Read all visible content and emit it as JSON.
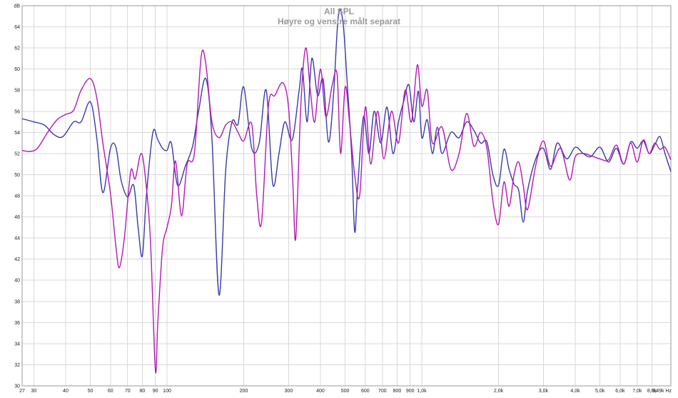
{
  "chart_data": {
    "type": "line",
    "title": "All SPL",
    "subtitle": "Høyre og venstre målt separat",
    "y_unit": "dB",
    "x_unit": "Hz",
    "x_scale": "log",
    "xlim": [
      27,
      9490
    ],
    "ylim": [
      30,
      66
    ],
    "grid": true,
    "colors": {
      "axis": "#999999",
      "grid": "#d8d8d8",
      "background": "#ffffff",
      "title": "#9a9a9a"
    },
    "y_ticks": [
      {
        "value": 30,
        "label": "30"
      },
      {
        "value": 32,
        "label": "32"
      },
      {
        "value": 34,
        "label": "34"
      },
      {
        "value": 36,
        "label": "36"
      },
      {
        "value": 38,
        "label": "38"
      },
      {
        "value": 40,
        "label": "40"
      },
      {
        "value": 42,
        "label": "42"
      },
      {
        "value": 44,
        "label": "44"
      },
      {
        "value": 46,
        "label": "46"
      },
      {
        "value": 48,
        "label": "48"
      },
      {
        "value": 50,
        "label": "50"
      },
      {
        "value": 52,
        "label": "52"
      },
      {
        "value": 54,
        "label": "54"
      },
      {
        "value": 56,
        "label": "56"
      },
      {
        "value": 58,
        "label": "58"
      },
      {
        "value": 60,
        "label": "60"
      },
      {
        "value": 62,
        "label": "62"
      },
      {
        "value": 64,
        "label": "64"
      },
      {
        "value": 66,
        "label": "dB"
      }
    ],
    "x_ticks": [
      {
        "value": 27,
        "label": "27"
      },
      {
        "value": 30,
        "label": "30"
      },
      {
        "value": 40,
        "label": "40"
      },
      {
        "value": 50,
        "label": "50"
      },
      {
        "value": 60,
        "label": "60"
      },
      {
        "value": 70,
        "label": "70"
      },
      {
        "value": 80,
        "label": "80"
      },
      {
        "value": 90,
        "label": "90"
      },
      {
        "value": 100,
        "label": "100"
      },
      {
        "value": 200,
        "label": "200"
      },
      {
        "value": 300,
        "label": "300"
      },
      {
        "value": 400,
        "label": "400"
      },
      {
        "value": 500,
        "label": "500"
      },
      {
        "value": 600,
        "label": "600"
      },
      {
        "value": 700,
        "label": "700"
      },
      {
        "value": 800,
        "label": "800"
      },
      {
        "value": 900,
        "label": "900"
      },
      {
        "value": 1000,
        "label": "1,0k"
      },
      {
        "value": 2000,
        "label": "2,0k"
      },
      {
        "value": 3000,
        "label": "3,0k"
      },
      {
        "value": 4000,
        "label": "4,0k"
      },
      {
        "value": 5000,
        "label": "5,0k"
      },
      {
        "value": 6000,
        "label": "6,0k"
      },
      {
        "value": 7000,
        "label": "7,0k"
      },
      {
        "value": 8000,
        "label": "8,0k"
      },
      {
        "value": 9490,
        "label": "9,49k Hz"
      }
    ],
    "series": [
      {
        "color": "#3a3aa8",
        "points": [
          [
            27,
            55.3
          ],
          [
            30,
            55.0
          ],
          [
            33,
            54.7
          ],
          [
            36,
            53.8
          ],
          [
            39,
            53.6
          ],
          [
            43,
            55.0
          ],
          [
            46,
            55.0
          ],
          [
            50,
            56.9
          ],
          [
            53,
            53.5
          ],
          [
            56,
            48.3
          ],
          [
            60,
            52.5
          ],
          [
            63,
            52.6
          ],
          [
            66,
            49.5
          ],
          [
            70,
            47.9
          ],
          [
            74,
            49.0
          ],
          [
            77,
            45.0
          ],
          [
            80,
            42.3
          ],
          [
            83,
            48.0
          ],
          [
            88,
            54.0
          ],
          [
            92,
            53.3
          ],
          [
            96,
            52.5
          ],
          [
            100,
            52.3
          ],
          [
            104,
            53.0
          ],
          [
            110,
            49.0
          ],
          [
            118,
            50.8
          ],
          [
            126,
            52.7
          ],
          [
            133,
            56.0
          ],
          [
            142,
            59.1
          ],
          [
            150,
            53.5
          ],
          [
            160,
            38.6
          ],
          [
            170,
            50.5
          ],
          [
            180,
            55.0
          ],
          [
            190,
            54.8
          ],
          [
            200,
            58.3
          ],
          [
            215,
            52.5
          ],
          [
            230,
            53.0
          ],
          [
            245,
            58.0
          ],
          [
            260,
            49.1
          ],
          [
            275,
            52.0
          ],
          [
            290,
            55.0
          ],
          [
            310,
            53.3
          ],
          [
            330,
            58.0
          ],
          [
            340,
            60.0
          ],
          [
            355,
            55.0
          ],
          [
            370,
            61.0
          ],
          [
            390,
            57.5
          ],
          [
            410,
            59.0
          ],
          [
            430,
            53.1
          ],
          [
            450,
            57.5
          ],
          [
            470,
            65.0
          ],
          [
            490,
            64.5
          ],
          [
            510,
            58.5
          ],
          [
            530,
            52.0
          ],
          [
            545,
            44.6
          ],
          [
            560,
            48.8
          ],
          [
            590,
            55.5
          ],
          [
            620,
            52.0
          ],
          [
            650,
            56.0
          ],
          [
            690,
            53.0
          ],
          [
            730,
            56.4
          ],
          [
            770,
            52.0
          ],
          [
            810,
            55.0
          ],
          [
            850,
            57.0
          ],
          [
            890,
            58.5
          ],
          [
            930,
            55.0
          ],
          [
            970,
            57.9
          ],
          [
            1000,
            53.5
          ],
          [
            1050,
            55.2
          ],
          [
            1100,
            52.0
          ],
          [
            1150,
            54.5
          ],
          [
            1200,
            52.0
          ],
          [
            1300,
            54.0
          ],
          [
            1400,
            53.5
          ],
          [
            1500,
            55.0
          ],
          [
            1600,
            54.2
          ],
          [
            1700,
            53.0
          ],
          [
            1800,
            53.1
          ],
          [
            1900,
            50.0
          ],
          [
            2000,
            49.0
          ],
          [
            2100,
            52.4
          ],
          [
            2200,
            50.5
          ],
          [
            2300,
            49.1
          ],
          [
            2400,
            48.5
          ],
          [
            2500,
            45.5
          ],
          [
            2600,
            48.5
          ],
          [
            2800,
            51.5
          ],
          [
            3000,
            52.5
          ],
          [
            3200,
            50.5
          ],
          [
            3400,
            53.0
          ],
          [
            3700,
            51.5
          ],
          [
            4000,
            52.6
          ],
          [
            4300,
            52.0
          ],
          [
            4600,
            51.7
          ],
          [
            5000,
            52.6
          ],
          [
            5400,
            51.2
          ],
          [
            5800,
            52.5
          ],
          [
            6200,
            51.0
          ],
          [
            6600,
            53.1
          ],
          [
            7000,
            52.5
          ],
          [
            7400,
            53.2
          ],
          [
            7800,
            52.0
          ],
          [
            8200,
            52.8
          ],
          [
            8600,
            53.6
          ],
          [
            9000,
            52.0
          ],
          [
            9490,
            50.3
          ]
        ]
      },
      {
        "color": "#b418b4",
        "points": [
          [
            27,
            52.3
          ],
          [
            29,
            52.2
          ],
          [
            31,
            52.5
          ],
          [
            34,
            54.0
          ],
          [
            37,
            55.2
          ],
          [
            40,
            55.7
          ],
          [
            43,
            56.1
          ],
          [
            46,
            58.0
          ],
          [
            50,
            59.1
          ],
          [
            53,
            57.3
          ],
          [
            56,
            53.0
          ],
          [
            60,
            48.2
          ],
          [
            63,
            43.2
          ],
          [
            65,
            41.2
          ],
          [
            68,
            44.0
          ],
          [
            72,
            50.3
          ],
          [
            75,
            49.6
          ],
          [
            79,
            52.0
          ],
          [
            82,
            50.0
          ],
          [
            86,
            44.0
          ],
          [
            90,
            31.5
          ],
          [
            92,
            36.0
          ],
          [
            96,
            43.0
          ],
          [
            100,
            45.0
          ],
          [
            104,
            47.0
          ],
          [
            108,
            51.3
          ],
          [
            114,
            46.1
          ],
          [
            120,
            51.0
          ],
          [
            128,
            52.0
          ],
          [
            136,
            61.1
          ],
          [
            142,
            60.5
          ],
          [
            150,
            55.0
          ],
          [
            160,
            53.5
          ],
          [
            170,
            54.7
          ],
          [
            180,
            55.0
          ],
          [
            190,
            54.0
          ],
          [
            200,
            53.2
          ],
          [
            215,
            54.8
          ],
          [
            225,
            48.0
          ],
          [
            235,
            45.5
          ],
          [
            250,
            56.5
          ],
          [
            265,
            57.5
          ],
          [
            285,
            58.7
          ],
          [
            300,
            56.3
          ],
          [
            312,
            49.0
          ],
          [
            320,
            44.0
          ],
          [
            335,
            56.5
          ],
          [
            350,
            62.0
          ],
          [
            365,
            58.0
          ],
          [
            380,
            55.0
          ],
          [
            400,
            60.0
          ],
          [
            420,
            55.5
          ],
          [
            445,
            58.5
          ],
          [
            465,
            59.5
          ],
          [
            480,
            52.0
          ],
          [
            500,
            58.3
          ],
          [
            520,
            55.0
          ],
          [
            545,
            50.0
          ],
          [
            570,
            48.0
          ],
          [
            600,
            56.4
          ],
          [
            630,
            51.0
          ],
          [
            670,
            56.0
          ],
          [
            710,
            51.5
          ],
          [
            760,
            56.0
          ],
          [
            810,
            53.0
          ],
          [
            860,
            58.0
          ],
          [
            910,
            55.0
          ],
          [
            960,
            60.4
          ],
          [
            1000,
            56.5
          ],
          [
            1050,
            58.0
          ],
          [
            1100,
            53.0
          ],
          [
            1200,
            54.5
          ],
          [
            1300,
            50.5
          ],
          [
            1400,
            52.0
          ],
          [
            1500,
            55.8
          ],
          [
            1600,
            52.7
          ],
          [
            1700,
            54.0
          ],
          [
            1800,
            52.5
          ],
          [
            1900,
            47.5
          ],
          [
            2000,
            45.3
          ],
          [
            2100,
            49.3
          ],
          [
            2200,
            47.0
          ],
          [
            2300,
            50.0
          ],
          [
            2400,
            51.2
          ],
          [
            2500,
            49.0
          ],
          [
            2600,
            46.7
          ],
          [
            2800,
            50.9
          ],
          [
            3000,
            53.2
          ],
          [
            3200,
            50.8
          ],
          [
            3500,
            52.5
          ],
          [
            3800,
            49.5
          ],
          [
            4000,
            51.7
          ],
          [
            4300,
            52.0
          ],
          [
            4600,
            51.8
          ],
          [
            5000,
            51.5
          ],
          [
            5400,
            51.4
          ],
          [
            5800,
            52.8
          ],
          [
            6200,
            51.0
          ],
          [
            6600,
            53.0
          ],
          [
            7000,
            51.2
          ],
          [
            7400,
            53.3
          ],
          [
            7800,
            52.0
          ],
          [
            8200,
            53.0
          ],
          [
            8600,
            52.4
          ],
          [
            9000,
            52.6
          ],
          [
            9490,
            51.4
          ]
        ]
      }
    ]
  }
}
